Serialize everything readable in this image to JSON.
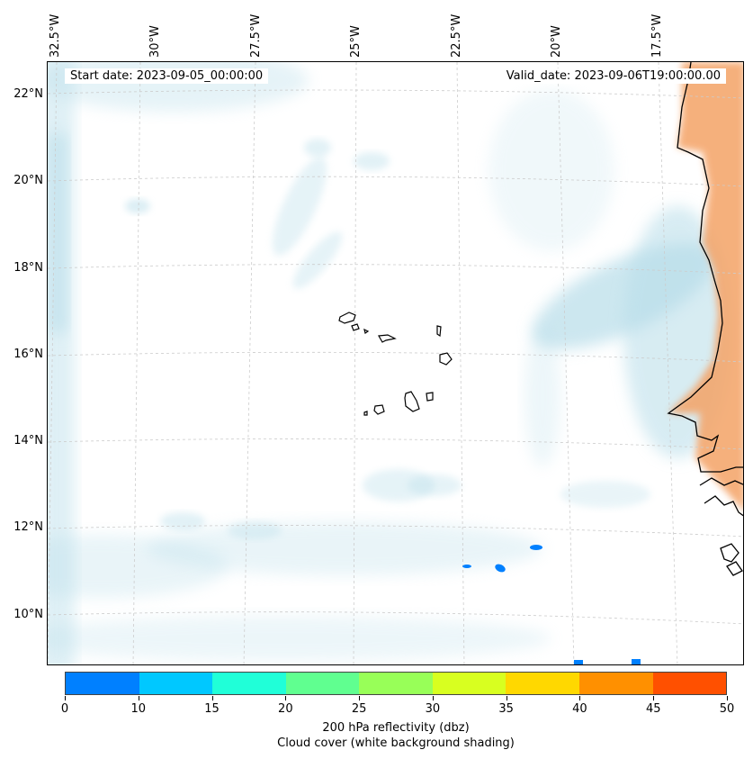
{
  "map": {
    "lon_labels": [
      "32.5°W",
      "30°W",
      "27.5°W",
      "25°W",
      "22.5°W",
      "20°W",
      "17.5°W"
    ],
    "lat_labels": [
      "22°N",
      "20°N",
      "18°N",
      "16°N",
      "14°N",
      "12°N",
      "10°N"
    ],
    "start_date": "Start date: 2023-09-05_00:00:00",
    "valid_date": "Valid_date: 2023-09-06T19:00:00.00"
  },
  "colorbar": {
    "colors": [
      "#0080ff",
      "#00c8ff",
      "#20ffd8",
      "#60ff90",
      "#98ff58",
      "#d8ff20",
      "#ffd800",
      "#ff9000",
      "#ff5000"
    ],
    "ticks": [
      "0",
      "10",
      "15",
      "20",
      "25",
      "30",
      "35",
      "40",
      "45",
      "50"
    ],
    "label": "200 hPa reflectivity (dbz)",
    "sublabel": "Cloud cover (white background shading)"
  },
  "colors": {
    "cloud": "#b7dde9",
    "land_heat": "#f4a366",
    "reflectivity": "#0080ff",
    "gridline": "#cccccc"
  }
}
